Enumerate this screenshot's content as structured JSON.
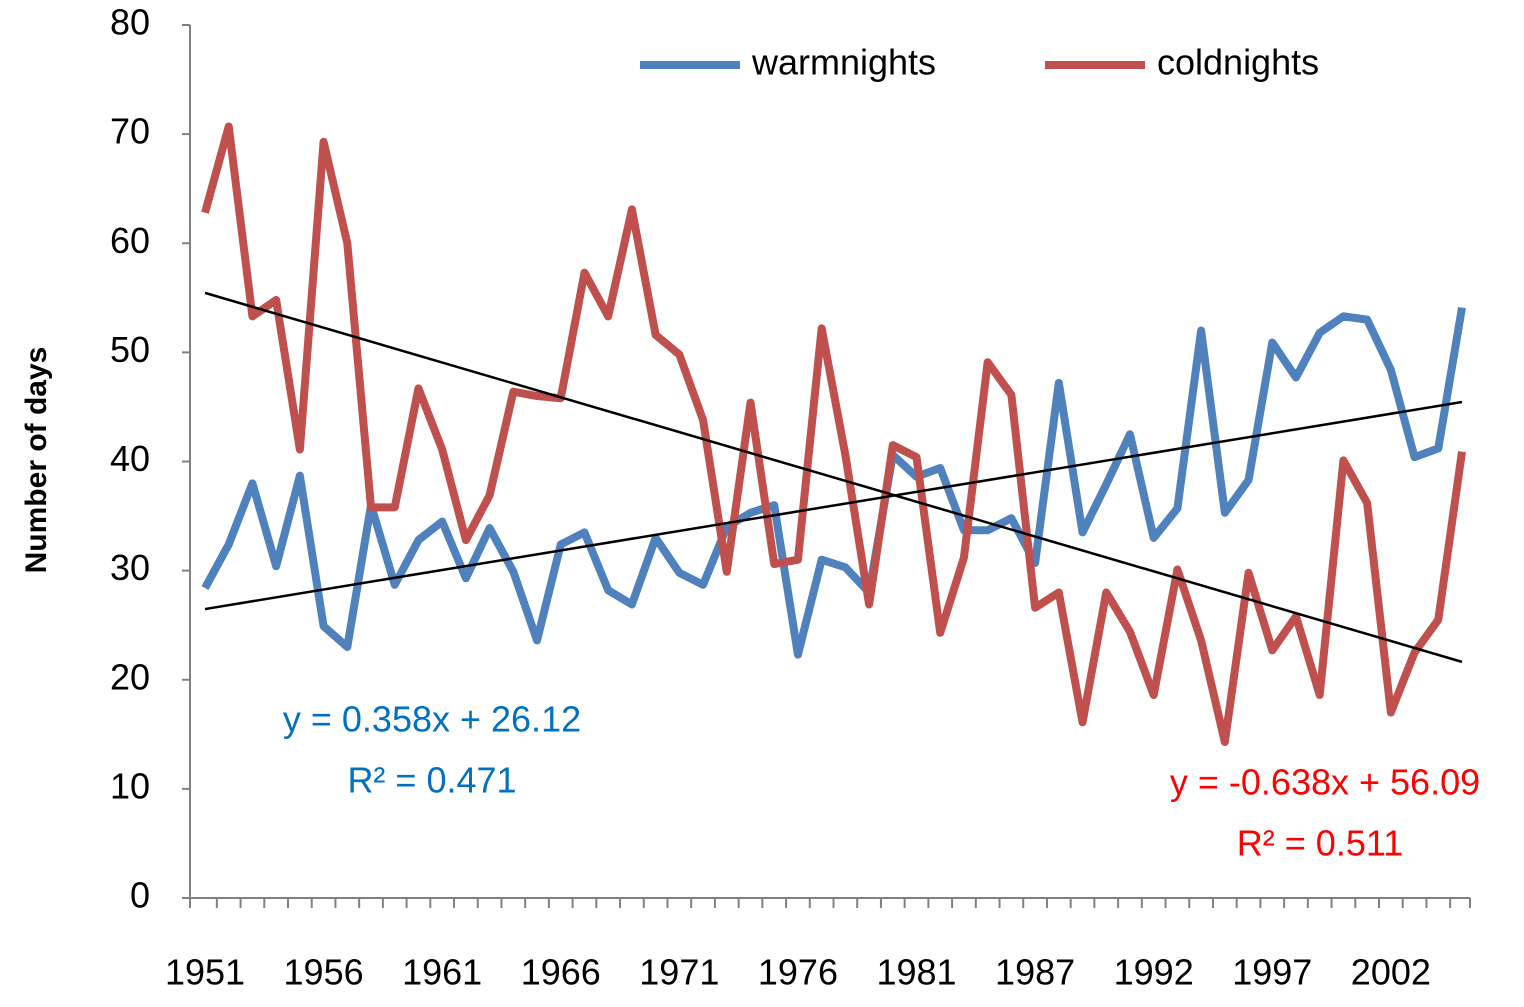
{
  "chart_data": {
    "type": "line",
    "y_label": "Number of days",
    "categories": [
      "1951",
      null,
      null,
      null,
      null,
      "1956",
      null,
      null,
      null,
      null,
      "1961",
      null,
      null,
      null,
      null,
      "1966",
      null,
      null,
      null,
      null,
      "1971",
      null,
      null,
      null,
      null,
      "1976",
      null,
      null,
      null,
      null,
      "1981",
      null,
      null,
      null,
      null,
      "1987",
      null,
      null,
      null,
      null,
      "1992",
      null,
      null,
      null,
      null,
      "1997",
      null,
      null,
      null,
      null,
      "2002",
      null,
      null,
      null
    ],
    "ylim": [
      0,
      80
    ],
    "yticks": [
      0,
      10,
      20,
      30,
      40,
      50,
      60,
      70,
      80
    ],
    "grid": false,
    "legend": "top-right",
    "series": [
      {
        "name": "warmnights",
        "color": "#4f81bd",
        "values": [
          28.4,
          32.4,
          38,
          30.4,
          38.7,
          24.9,
          23,
          36,
          28.7,
          32.8,
          34.5,
          29.3,
          33.9,
          29.9,
          23.6,
          32.4,
          33.5,
          28.2,
          26.9,
          33,
          29.8,
          28.7,
          34,
          35.3,
          36,
          22.3,
          31,
          30.3,
          28,
          40.6,
          38.6,
          39.4,
          33.7,
          33.7,
          34.8,
          30.7,
          47.2,
          33.5,
          37.9,
          42.5,
          33,
          35.7,
          52,
          35.3,
          38.3,
          50.9,
          47.7,
          51.8,
          53.3,
          53,
          48.4,
          40.4,
          41.2,
          54.1
        ],
        "trendline": {
          "equation": "y = 0.358x + 26.12",
          "r2_label": "R² = 0.471",
          "slope": 0.358,
          "intercept": 26.12,
          "r2": 0.471,
          "label_color": "#0070c0"
        }
      },
      {
        "name": "coldnights",
        "color": "#c0504d",
        "values": [
          62.8,
          70.7,
          53.3,
          54.8,
          41.1,
          69.3,
          60,
          35.8,
          35.8,
          46.7,
          41.1,
          32.8,
          36.9,
          46.4,
          46,
          45.8,
          57.3,
          53.3,
          63.1,
          51.6,
          49.8,
          43.8,
          29.9,
          45.4,
          30.6,
          31,
          52.2,
          40.6,
          26.9,
          41.5,
          40.4,
          24.3,
          31.2,
          49.1,
          46.1,
          26.6,
          28,
          16.1,
          28,
          24.4,
          18.6,
          30.1,
          23.6,
          14.3,
          29.8,
          22.7,
          25.8,
          18.6,
          40.1,
          36.2,
          17,
          22.5,
          25.5,
          40.9
        ],
        "trendline": {
          "equation": "y = -0.638x + 56.09",
          "r2_label": "R² = 0.511",
          "slope": -0.638,
          "intercept": 56.09,
          "r2": 0.511,
          "label_color": "#ff0000"
        }
      }
    ]
  }
}
